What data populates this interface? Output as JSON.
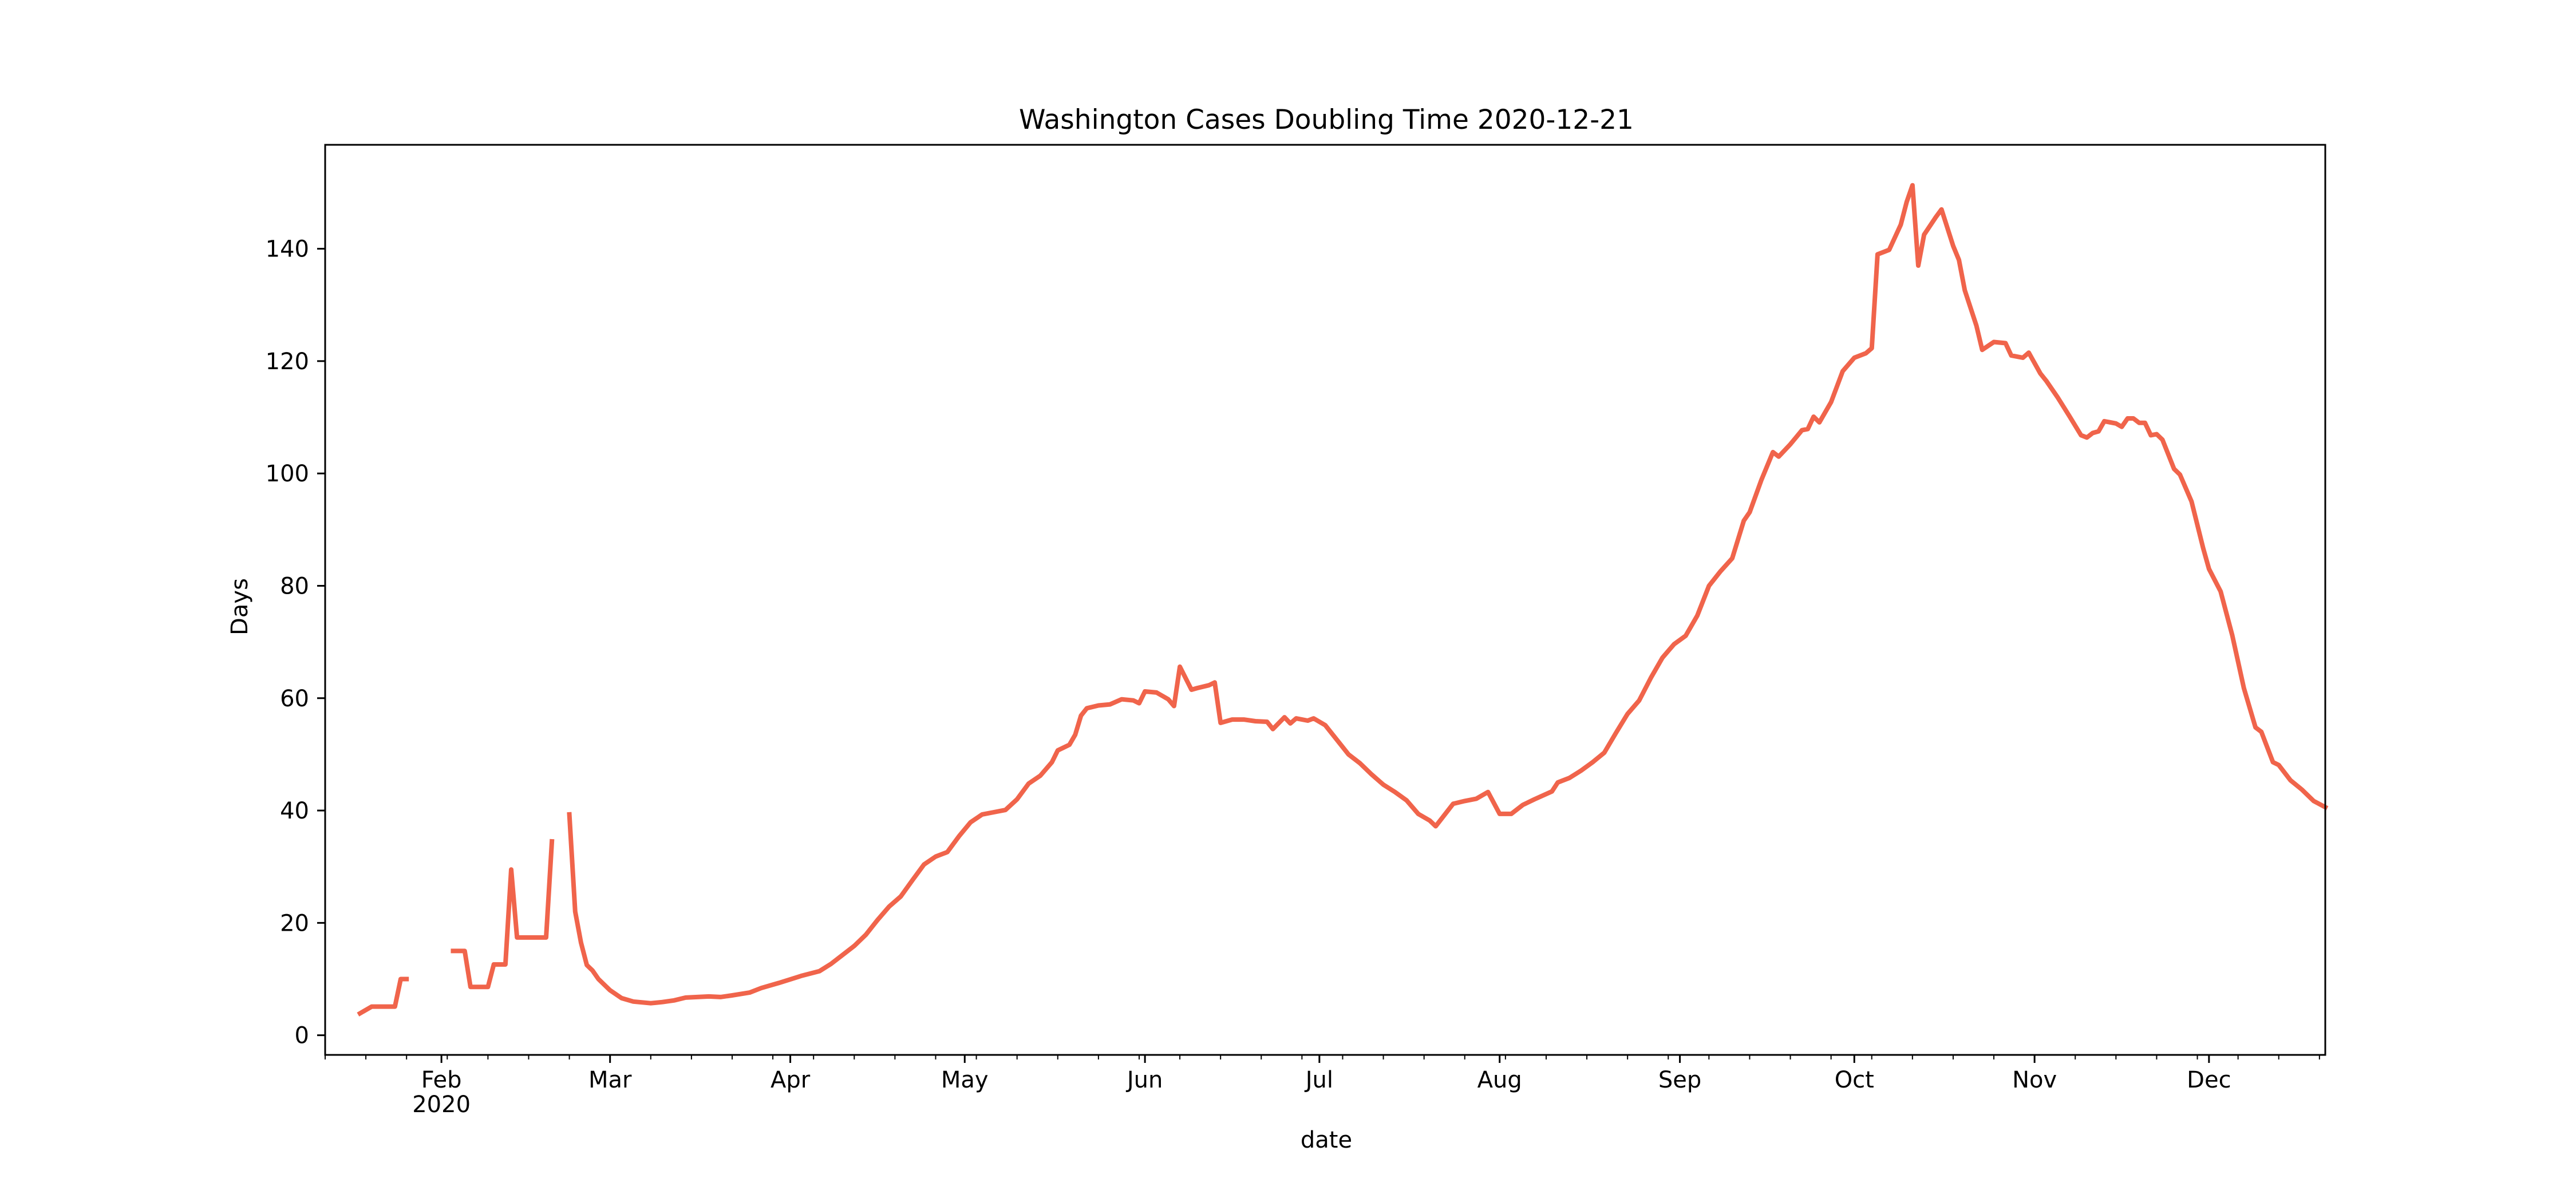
{
  "chart_data": {
    "type": "line",
    "title": "Washington Cases Doubling Time 2020-12-21",
    "xlabel": "date",
    "ylabel": "Days",
    "xlim": [
      "2020-01-12",
      "2020-12-21"
    ],
    "ylim": [
      -3.5,
      158.5
    ],
    "y_ticks": [
      0,
      20,
      40,
      60,
      80,
      100,
      120,
      140
    ],
    "x_ticks": [
      {
        "date": "2020-02-01",
        "label": "Feb",
        "year": "2020"
      },
      {
        "date": "2020-03-01",
        "label": "Mar"
      },
      {
        "date": "2020-04-01",
        "label": "Apr"
      },
      {
        "date": "2020-05-01",
        "label": "May"
      },
      {
        "date": "2020-06-01",
        "label": "Jun"
      },
      {
        "date": "2020-07-01",
        "label": "Jul"
      },
      {
        "date": "2020-08-01",
        "label": "Aug"
      },
      {
        "date": "2020-09-01",
        "label": "Sep"
      },
      {
        "date": "2020-10-01",
        "label": "Oct"
      },
      {
        "date": "2020-11-01",
        "label": "Nov"
      },
      {
        "date": "2020-12-01",
        "label": "Dec"
      }
    ],
    "grid": false,
    "legend": "none",
    "line_color": "#f0644b",
    "series": [
      {
        "segments": [
          [
            [
              "2020-01-18",
              3.9
            ],
            [
              "2020-01-20",
              5.1
            ],
            [
              "2020-01-24",
              5.1
            ],
            [
              "2020-01-25",
              10.0
            ],
            [
              "2020-01-26",
              10.0
            ]
          ],
          [
            [
              "2020-02-03",
              15.0
            ],
            [
              "2020-02-05",
              15.0
            ],
            [
              "2020-02-06",
              8.6
            ],
            [
              "2020-02-09",
              8.6
            ],
            [
              "2020-02-10",
              12.6
            ],
            [
              "2020-02-12",
              12.6
            ],
            [
              "2020-02-13",
              29.5
            ],
            [
              "2020-02-14",
              17.4
            ],
            [
              "2020-02-19",
              17.4
            ],
            [
              "2020-02-20",
              34.5
            ]
          ],
          [
            [
              "2020-02-23",
              39.3
            ],
            [
              "2020-02-24",
              22.0
            ],
            [
              "2020-02-25",
              16.5
            ],
            [
              "2020-02-26",
              12.5
            ],
            [
              "2020-02-27",
              11.5
            ],
            [
              "2020-02-28",
              10.0
            ],
            [
              "2020-03-01",
              8.0
            ],
            [
              "2020-03-03",
              6.6
            ],
            [
              "2020-03-05",
              6.0
            ],
            [
              "2020-03-08",
              5.7
            ],
            [
              "2020-03-10",
              5.9
            ],
            [
              "2020-03-12",
              6.2
            ],
            [
              "2020-03-14",
              6.7
            ],
            [
              "2020-03-18",
              6.9
            ],
            [
              "2020-03-20",
              6.8
            ],
            [
              "2020-03-22",
              7.1
            ],
            [
              "2020-03-25",
              7.6
            ],
            [
              "2020-03-27",
              8.4
            ],
            [
              "2020-03-30",
              9.3
            ],
            [
              "2020-04-03",
              10.6
            ],
            [
              "2020-04-06",
              11.4
            ],
            [
              "2020-04-08",
              12.7
            ],
            [
              "2020-04-10",
              14.3
            ],
            [
              "2020-04-12",
              15.9
            ],
            [
              "2020-04-14",
              17.9
            ],
            [
              "2020-04-16",
              20.5
            ],
            [
              "2020-04-18",
              22.9
            ],
            [
              "2020-04-20",
              24.7
            ],
            [
              "2020-04-22",
              27.6
            ],
            [
              "2020-04-24",
              30.4
            ],
            [
              "2020-04-26",
              31.8
            ],
            [
              "2020-04-28",
              32.6
            ],
            [
              "2020-04-30",
              35.4
            ],
            [
              "2020-05-02",
              37.9
            ],
            [
              "2020-05-04",
              39.3
            ],
            [
              "2020-05-06",
              39.7
            ],
            [
              "2020-05-08",
              40.1
            ],
            [
              "2020-05-10",
              42.0
            ],
            [
              "2020-05-12",
              44.8
            ],
            [
              "2020-05-14",
              46.2
            ],
            [
              "2020-05-16",
              48.6
            ],
            [
              "2020-05-17",
              50.7
            ],
            [
              "2020-05-18",
              51.2
            ],
            [
              "2020-05-19",
              51.7
            ],
            [
              "2020-05-20",
              53.5
            ],
            [
              "2020-05-21",
              56.9
            ],
            [
              "2020-05-22",
              58.2
            ],
            [
              "2020-05-24",
              58.7
            ],
            [
              "2020-05-26",
              58.9
            ],
            [
              "2020-05-28",
              59.8
            ],
            [
              "2020-05-30",
              59.6
            ],
            [
              "2020-05-31",
              59.1
            ],
            [
              "2020-06-01",
              61.2
            ],
            [
              "2020-06-03",
              61.0
            ],
            [
              "2020-06-05",
              59.8
            ],
            [
              "2020-06-06",
              58.6
            ],
            [
              "2020-06-07",
              65.6
            ],
            [
              "2020-06-09",
              61.5
            ],
            [
              "2020-06-10",
              61.8
            ],
            [
              "2020-06-12",
              62.3
            ],
            [
              "2020-06-13",
              62.8
            ],
            [
              "2020-06-14",
              55.6
            ],
            [
              "2020-06-16",
              56.2
            ],
            [
              "2020-06-18",
              56.2
            ],
            [
              "2020-06-20",
              55.9
            ],
            [
              "2020-06-22",
              55.8
            ],
            [
              "2020-06-23",
              54.5
            ],
            [
              "2020-06-25",
              56.6
            ],
            [
              "2020-06-26",
              55.5
            ],
            [
              "2020-06-27",
              56.4
            ],
            [
              "2020-06-29",
              56.0
            ],
            [
              "2020-06-30",
              56.4
            ],
            [
              "2020-07-02",
              55.2
            ],
            [
              "2020-07-04",
              52.6
            ],
            [
              "2020-07-06",
              50.0
            ],
            [
              "2020-07-08",
              48.4
            ],
            [
              "2020-07-10",
              46.4
            ],
            [
              "2020-07-12",
              44.6
            ],
            [
              "2020-07-14",
              43.3
            ],
            [
              "2020-07-16",
              41.8
            ],
            [
              "2020-07-18",
              39.4
            ],
            [
              "2020-07-20",
              38.2
            ],
            [
              "2020-07-21",
              37.2
            ],
            [
              "2020-07-24",
              41.2
            ],
            [
              "2020-07-26",
              41.7
            ],
            [
              "2020-07-28",
              42.1
            ],
            [
              "2020-07-30",
              43.3
            ],
            [
              "2020-08-01",
              39.4
            ],
            [
              "2020-08-03",
              39.4
            ],
            [
              "2020-08-05",
              41.0
            ],
            [
              "2020-08-07",
              42.0
            ],
            [
              "2020-08-10",
              43.4
            ],
            [
              "2020-08-11",
              45.0
            ],
            [
              "2020-08-13",
              45.8
            ],
            [
              "2020-08-15",
              47.1
            ],
            [
              "2020-08-17",
              48.6
            ],
            [
              "2020-08-19",
              50.3
            ],
            [
              "2020-08-21",
              53.8
            ],
            [
              "2020-08-23",
              57.2
            ],
            [
              "2020-08-25",
              59.6
            ],
            [
              "2020-08-27",
              63.6
            ],
            [
              "2020-08-29",
              67.2
            ],
            [
              "2020-08-31",
              69.6
            ],
            [
              "2020-09-02",
              71.1
            ],
            [
              "2020-09-04",
              74.7
            ],
            [
              "2020-09-06",
              80.0
            ],
            [
              "2020-09-08",
              82.6
            ],
            [
              "2020-09-10",
              84.9
            ],
            [
              "2020-09-12",
              91.6
            ],
            [
              "2020-09-13",
              93.1
            ],
            [
              "2020-09-15",
              98.8
            ],
            [
              "2020-09-17",
              103.8
            ],
            [
              "2020-09-18",
              103.0
            ],
            [
              "2020-09-20",
              105.2
            ],
            [
              "2020-09-22",
              107.7
            ],
            [
              "2020-09-23",
              107.9
            ],
            [
              "2020-09-24",
              110.1
            ],
            [
              "2020-09-25",
              109.1
            ],
            [
              "2020-09-27",
              112.7
            ],
            [
              "2020-09-29",
              118.2
            ],
            [
              "2020-10-01",
              120.6
            ],
            [
              "2020-10-03",
              121.4
            ],
            [
              "2020-10-04",
              122.3
            ],
            [
              "2020-10-05",
              139.0
            ],
            [
              "2020-10-07",
              139.8
            ],
            [
              "2020-10-09",
              144.3
            ],
            [
              "2020-10-10",
              148.3
            ],
            [
              "2020-10-11",
              151.3
            ],
            [
              "2020-10-12",
              137.0
            ],
            [
              "2020-10-13",
              142.5
            ],
            [
              "2020-10-15",
              145.6
            ],
            [
              "2020-10-16",
              147.0
            ],
            [
              "2020-10-18",
              140.5
            ],
            [
              "2020-10-19",
              138.0
            ],
            [
              "2020-10-20",
              132.6
            ],
            [
              "2020-10-22",
              126.3
            ],
            [
              "2020-10-23",
              122.0
            ],
            [
              "2020-10-25",
              123.4
            ],
            [
              "2020-10-27",
              123.2
            ],
            [
              "2020-10-28",
              121.0
            ],
            [
              "2020-10-30",
              120.6
            ],
            [
              "2020-10-31",
              121.5
            ],
            [
              "2020-11-02",
              117.8
            ],
            [
              "2020-11-03",
              116.5
            ],
            [
              "2020-11-05",
              113.5
            ],
            [
              "2020-11-07",
              110.2
            ],
            [
              "2020-11-09",
              106.8
            ],
            [
              "2020-11-10",
              106.4
            ],
            [
              "2020-11-11",
              107.2
            ],
            [
              "2020-11-12",
              107.5
            ],
            [
              "2020-11-13",
              109.3
            ],
            [
              "2020-11-15",
              108.9
            ],
            [
              "2020-11-16",
              108.3
            ],
            [
              "2020-11-17",
              109.8
            ],
            [
              "2020-11-18",
              109.8
            ],
            [
              "2020-11-19",
              109.0
            ],
            [
              "2020-11-20",
              109.0
            ],
            [
              "2020-11-21",
              106.8
            ],
            [
              "2020-11-22",
              107.0
            ],
            [
              "2020-11-23",
              106.0
            ],
            [
              "2020-11-25",
              100.8
            ],
            [
              "2020-11-26",
              99.8
            ],
            [
              "2020-11-28",
              95.0
            ],
            [
              "2020-11-30",
              86.7
            ],
            [
              "2020-12-01",
              83.0
            ],
            [
              "2020-12-03",
              79.0
            ],
            [
              "2020-12-05",
              71.2
            ],
            [
              "2020-12-07",
              61.8
            ],
            [
              "2020-12-09",
              54.8
            ],
            [
              "2020-12-10",
              54.0
            ],
            [
              "2020-12-12",
              48.6
            ],
            [
              "2020-12-13",
              48.1
            ],
            [
              "2020-12-15",
              45.4
            ],
            [
              "2020-12-17",
              43.7
            ],
            [
              "2020-12-19",
              41.7
            ],
            [
              "2020-12-21",
              40.6
            ]
          ]
        ]
      }
    ]
  }
}
